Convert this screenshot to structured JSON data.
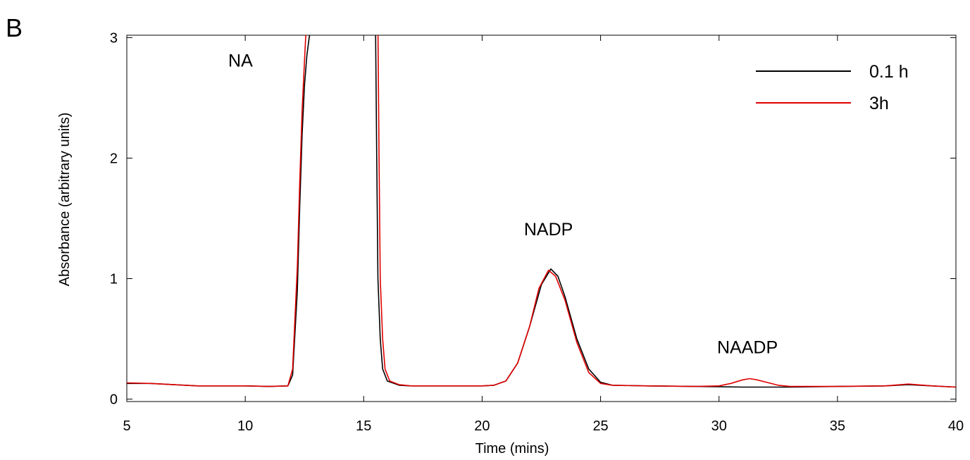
{
  "chart_data": {
    "type": "line",
    "panel_label": "B",
    "title": "",
    "xlabel": "Time (mins)",
    "ylabel": "Absorbance (arbitrary units)",
    "xlim": [
      5,
      40
    ],
    "ylim": [
      -0.02,
      3.02
    ],
    "x_ticks": [
      5,
      10,
      15,
      20,
      25,
      30,
      35,
      40
    ],
    "y_ticks": [
      0,
      1,
      2,
      3
    ],
    "grid": false,
    "legend_position": "top-right",
    "annotations": [
      {
        "text": "NA",
        "x": 9.8,
        "y": 2.76
      },
      {
        "text": "NADP",
        "x": 22.8,
        "y": 1.36
      },
      {
        "text": "NAADP",
        "x": 31.2,
        "y": 0.38
      }
    ],
    "series": [
      {
        "name": "0.1 h",
        "color": "#000000",
        "points": [
          [
            5,
            0.13
          ],
          [
            6,
            0.13
          ],
          [
            7,
            0.12
          ],
          [
            8,
            0.11
          ],
          [
            9,
            0.11
          ],
          [
            10,
            0.11
          ],
          [
            11,
            0.105
          ],
          [
            11.8,
            0.11
          ],
          [
            12.0,
            0.2
          ],
          [
            12.2,
            0.9
          ],
          [
            12.3,
            1.6
          ],
          [
            12.4,
            2.2
          ],
          [
            12.5,
            2.6
          ],
          [
            12.6,
            2.85
          ],
          [
            12.7,
            3.0
          ],
          [
            12.8,
            3.1
          ],
          [
            15.5,
            3.1
          ],
          [
            15.55,
            2.0
          ],
          [
            15.6,
            1.0
          ],
          [
            15.7,
            0.5
          ],
          [
            15.8,
            0.25
          ],
          [
            16.0,
            0.15
          ],
          [
            16.5,
            0.115
          ],
          [
            17,
            0.11
          ],
          [
            18,
            0.11
          ],
          [
            19,
            0.11
          ],
          [
            20,
            0.11
          ],
          [
            20.5,
            0.115
          ],
          [
            21,
            0.15
          ],
          [
            21.5,
            0.3
          ],
          [
            22,
            0.6
          ],
          [
            22.5,
            0.95
          ],
          [
            22.9,
            1.08
          ],
          [
            23.2,
            1.02
          ],
          [
            23.5,
            0.85
          ],
          [
            24,
            0.5
          ],
          [
            24.5,
            0.25
          ],
          [
            25,
            0.14
          ],
          [
            25.5,
            0.115
          ],
          [
            27,
            0.11
          ],
          [
            29,
            0.105
          ],
          [
            31,
            0.1
          ],
          [
            33,
            0.1
          ],
          [
            35,
            0.105
          ],
          [
            37,
            0.11
          ],
          [
            38,
            0.12
          ],
          [
            39,
            0.11
          ],
          [
            40,
            0.1
          ]
        ]
      },
      {
        "name": "3h",
        "color": "#e00000",
        "points": [
          [
            5,
            0.135
          ],
          [
            6,
            0.13
          ],
          [
            7,
            0.12
          ],
          [
            8,
            0.11
          ],
          [
            9,
            0.11
          ],
          [
            10,
            0.11
          ],
          [
            11,
            0.105
          ],
          [
            11.8,
            0.11
          ],
          [
            12.0,
            0.25
          ],
          [
            12.2,
            1.1
          ],
          [
            12.3,
            1.8
          ],
          [
            12.4,
            2.4
          ],
          [
            12.5,
            2.8
          ],
          [
            12.55,
            3.0
          ],
          [
            12.6,
            3.1
          ],
          [
            15.6,
            3.1
          ],
          [
            15.65,
            2.0
          ],
          [
            15.7,
            1.0
          ],
          [
            15.8,
            0.5
          ],
          [
            15.9,
            0.25
          ],
          [
            16.1,
            0.15
          ],
          [
            16.5,
            0.12
          ],
          [
            17,
            0.11
          ],
          [
            18,
            0.11
          ],
          [
            19,
            0.11
          ],
          [
            20,
            0.11
          ],
          [
            20.5,
            0.115
          ],
          [
            21,
            0.15
          ],
          [
            21.5,
            0.3
          ],
          [
            22,
            0.6
          ],
          [
            22.4,
            0.92
          ],
          [
            22.8,
            1.07
          ],
          [
            23.1,
            1.02
          ],
          [
            23.5,
            0.82
          ],
          [
            24,
            0.47
          ],
          [
            24.5,
            0.22
          ],
          [
            25,
            0.13
          ],
          [
            25.5,
            0.115
          ],
          [
            27,
            0.11
          ],
          [
            29,
            0.105
          ],
          [
            30,
            0.11
          ],
          [
            30.5,
            0.13
          ],
          [
            31,
            0.16
          ],
          [
            31.3,
            0.17
          ],
          [
            31.6,
            0.16
          ],
          [
            32,
            0.14
          ],
          [
            32.5,
            0.115
          ],
          [
            33,
            0.105
          ],
          [
            35,
            0.105
          ],
          [
            37,
            0.11
          ],
          [
            38,
            0.125
          ],
          [
            39,
            0.11
          ],
          [
            40,
            0.1
          ]
        ]
      }
    ]
  }
}
